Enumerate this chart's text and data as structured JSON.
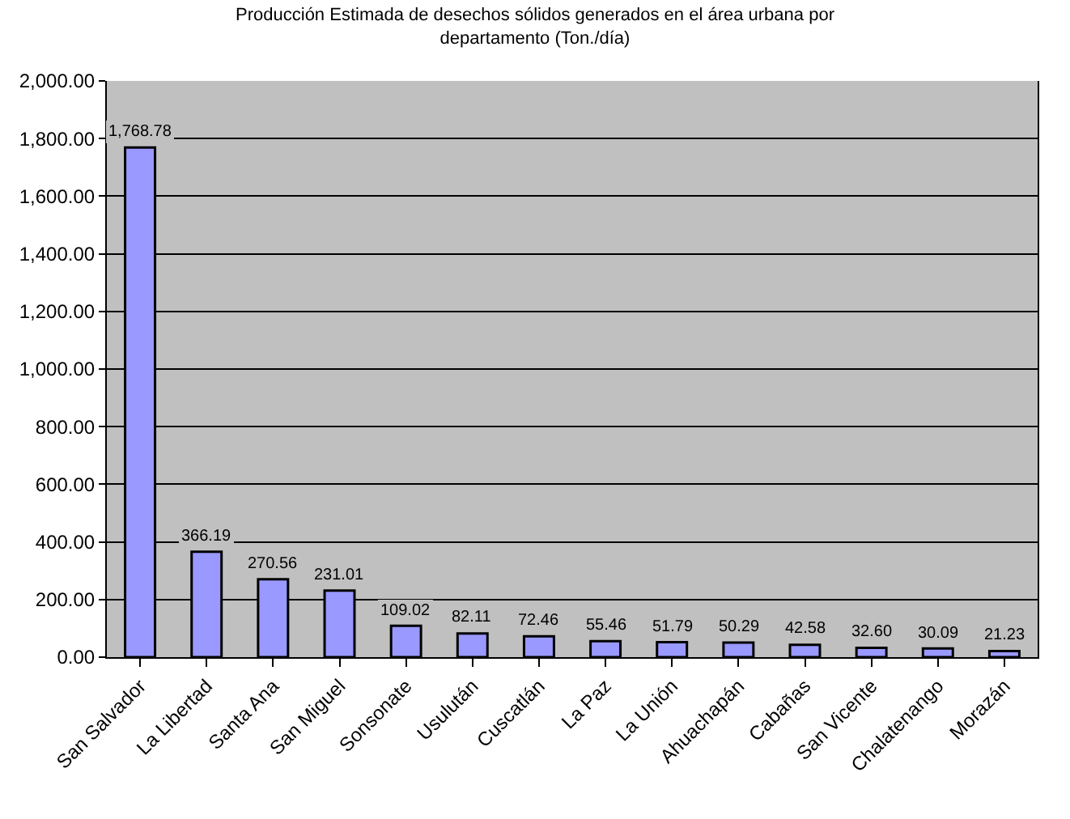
{
  "chart_data": {
    "type": "bar",
    "title": "Producción Estimada de desechos sólidos generados en el área urbana por departamento (Ton./día)",
    "categories": [
      "San Salvador",
      "La Libertad",
      "Santa Ana",
      "San Miguel",
      "Sonsonate",
      "Usulután",
      "Cuscatlán",
      "La Paz",
      "La Unión",
      "Ahuachapán",
      "Cabañas",
      "San Vicente",
      "Chalatenango",
      "Morazán"
    ],
    "values": [
      1768.78,
      366.19,
      270.56,
      231.01,
      109.02,
      82.11,
      72.46,
      55.46,
      51.79,
      50.29,
      42.58,
      32.6,
      30.09,
      21.23
    ],
    "value_labels": [
      "1,768.78",
      "366.19",
      "270.56",
      "231.01",
      "109.02",
      "82.11",
      "72.46",
      "55.46",
      "51.79",
      "50.29",
      "42.58",
      "32.60",
      "30.09",
      "21.23"
    ],
    "color": "#9999ff",
    "ylim": [
      0,
      2000
    ],
    "yticks": [
      {
        "value": 0,
        "label": "0.00"
      },
      {
        "value": 200,
        "label": "200.00"
      },
      {
        "value": 400,
        "label": "400.00"
      },
      {
        "value": 600,
        "label": "600.00"
      },
      {
        "value": 800,
        "label": "800.00"
      },
      {
        "value": 1000,
        "label": "1,000.00"
      },
      {
        "value": 1200,
        "label": "1,200.00"
      },
      {
        "value": 1400,
        "label": "1,400.00"
      },
      {
        "value": 1600,
        "label": "1,600.00"
      },
      {
        "value": 1800,
        "label": "1,800.00"
      },
      {
        "value": 2000,
        "label": "2,000.00"
      }
    ],
    "grid": "y"
  }
}
